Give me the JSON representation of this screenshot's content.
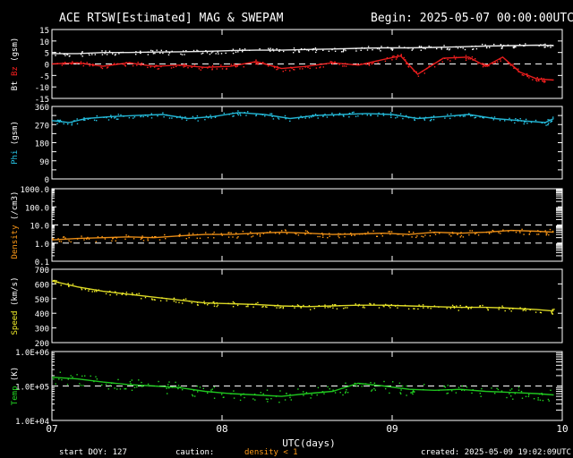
{
  "header": {
    "title": "ACE RTSW[Estimated] MAG & SWEPAM",
    "begin": "Begin: 2025-05-07 00:00:00UTC"
  },
  "footer": {
    "start_doy": "start DOY: 127",
    "caution": "caution:",
    "density_note": "density < 1",
    "created": "created: 2025-05-09 19:02:09UTC"
  },
  "chart_data": {
    "type": "scatter",
    "x_axis": {
      "label": "UTC(days)",
      "ticks": [
        "07",
        "08",
        "09",
        "10"
      ],
      "range_days": [
        0,
        3
      ]
    },
    "panels": [
      {
        "id": "bz",
        "ylabel_parts": [
          {
            "text": "Bt",
            "color": "#ffffff"
          },
          {
            "text": "Bz",
            "color": "#ff2020"
          },
          {
            "text": "(gsm)",
            "color": "#ffffff"
          }
        ],
        "ylim": [
          -15,
          15
        ],
        "ticks": [
          -15,
          -10,
          -5,
          0,
          5,
          10,
          15
        ],
        "tick_labels": [
          "-15",
          "-10",
          "-5",
          "0",
          "5",
          "10",
          "15"
        ],
        "dashed_at": [
          0
        ],
        "series": [
          {
            "name": "Bt",
            "color": "#ffffff",
            "x": [
              0.0,
              0.15,
              0.3,
              0.45,
              0.6,
              0.75,
              0.9,
              1.05,
              1.2,
              1.35,
              1.5,
              1.65,
              1.8,
              1.95,
              2.1,
              2.25,
              2.4,
              2.55,
              2.7,
              2.85,
              2.95
            ],
            "y": [
              4.5,
              4.5,
              5.0,
              5.0,
              5.2,
              5.3,
              5.5,
              5.8,
              6.0,
              6.0,
              6.3,
              6.5,
              6.8,
              7.0,
              7.0,
              7.2,
              7.5,
              7.8,
              8.0,
              8.2,
              8.0
            ]
          },
          {
            "name": "Bz",
            "color": "#ff2020",
            "x": [
              0.0,
              0.15,
              0.3,
              0.45,
              0.6,
              0.75,
              0.9,
              1.05,
              1.2,
              1.35,
              1.5,
              1.65,
              1.8,
              1.95,
              2.05,
              2.15,
              2.3,
              2.45,
              2.55,
              2.65,
              2.75,
              2.85,
              2.95
            ],
            "y": [
              0.0,
              0.5,
              -1.0,
              0.5,
              -1.0,
              -0.5,
              -1.5,
              -1.0,
              1.0,
              -2.0,
              -1.0,
              0.5,
              -0.5,
              2.0,
              3.5,
              -4.5,
              2.5,
              3.0,
              -1.0,
              3.0,
              -3.5,
              -6.5,
              -7.0
            ]
          }
        ]
      },
      {
        "id": "phi",
        "ylabel_parts": [
          {
            "text": "Phi",
            "color": "#27c6e8"
          },
          {
            "text": "(gsm)",
            "color": "#ffffff"
          }
        ],
        "ylim": [
          0,
          360
        ],
        "ticks": [
          0,
          45,
          90,
          135,
          180,
          225,
          270,
          315,
          360
        ],
        "tick_labels": [
          "0",
          "",
          "90",
          "",
          "180",
          "",
          "270",
          "",
          "360"
        ],
        "dashed_at": [],
        "series": [
          {
            "name": "Phi",
            "color": "#27c6e8",
            "x": [
              0.0,
              0.1,
              0.2,
              0.35,
              0.5,
              0.65,
              0.8,
              0.95,
              1.1,
              1.25,
              1.4,
              1.55,
              1.7,
              1.85,
              2.0,
              2.15,
              2.3,
              2.45,
              2.6,
              2.75,
              2.9,
              2.95
            ],
            "y": [
              290,
              280,
              300,
              310,
              315,
              320,
              300,
              310,
              330,
              320,
              300,
              315,
              320,
              325,
              320,
              300,
              310,
              320,
              300,
              290,
              280,
              300
            ]
          }
        ]
      },
      {
        "id": "density",
        "ylabel_parts": [
          {
            "text": "Density",
            "color": "#ff9a18"
          },
          {
            "text": "(/cm3)",
            "color": "#ffffff"
          }
        ],
        "scale": "log",
        "ylim": [
          0.1,
          1000
        ],
        "ticks": [
          0.1,
          1.0,
          10.0,
          100.0,
          1000.0
        ],
        "tick_labels": [
          "0.1",
          "1.0",
          "10.0",
          "100.0",
          "1000.0"
        ],
        "dashed_at": [
          1.0,
          10.0
        ],
        "series": [
          {
            "name": "Density",
            "color": "#ff9a18",
            "x": [
              0.0,
              0.15,
              0.3,
              0.45,
              0.6,
              0.75,
              0.9,
              1.05,
              1.2,
              1.35,
              1.5,
              1.65,
              1.8,
              1.95,
              2.1,
              2.25,
              2.4,
              2.55,
              2.7,
              2.85,
              2.95
            ],
            "y": [
              1.5,
              1.8,
              2.0,
              2.2,
              2.0,
              2.5,
              3.0,
              3.0,
              3.5,
              4.0,
              3.5,
              3.0,
              3.2,
              3.5,
              3.0,
              4.0,
              3.5,
              4.0,
              5.0,
              4.5,
              4.0
            ]
          }
        ]
      },
      {
        "id": "speed",
        "ylabel_parts": [
          {
            "text": "Speed",
            "color": "#f3ef2a"
          },
          {
            "text": "(km/s)",
            "color": "#ffffff"
          }
        ],
        "ylim": [
          200,
          700
        ],
        "ticks": [
          200,
          300,
          400,
          500,
          600,
          700
        ],
        "tick_labels": [
          "200",
          "300",
          "400",
          "500",
          "600",
          "700"
        ],
        "dashed_at": [],
        "series": [
          {
            "name": "Speed",
            "color": "#f3ef2a",
            "x": [
              0.0,
              0.15,
              0.3,
              0.45,
              0.6,
              0.75,
              0.9,
              1.05,
              1.2,
              1.35,
              1.5,
              1.65,
              1.8,
              1.95,
              2.1,
              2.25,
              2.4,
              2.55,
              2.7,
              2.85,
              2.95
            ],
            "y": [
              620,
              580,
              550,
              530,
              510,
              490,
              470,
              465,
              460,
              450,
              445,
              450,
              455,
              455,
              450,
              445,
              440,
              440,
              435,
              425,
              415
            ]
          }
        ]
      },
      {
        "id": "temp",
        "ylabel_parts": [
          {
            "text": "Temp",
            "color": "#22d822"
          },
          {
            "text": "(K)",
            "color": "#ffffff"
          }
        ],
        "scale": "log",
        "ylim": [
          10000,
          1000000
        ],
        "ticks": [
          10000,
          100000,
          1000000
        ],
        "tick_labels": [
          "1.0E+04",
          "1.0E+05",
          "1.0E+06"
        ],
        "dashed_at": [
          100000
        ],
        "series": [
          {
            "name": "Temp",
            "color": "#22d822",
            "x": [
              0.0,
              0.15,
              0.3,
              0.45,
              0.6,
              0.75,
              0.9,
              1.05,
              1.2,
              1.35,
              1.5,
              1.65,
              1.8,
              1.95,
              2.1,
              2.25,
              2.4,
              2.55,
              2.7,
              2.85,
              2.95
            ],
            "y": [
              180000,
              160000,
              130000,
              110000,
              100000,
              90000,
              70000,
              60000,
              55000,
              50000,
              60000,
              70000,
              120000,
              100000,
              80000,
              75000,
              80000,
              70000,
              65000,
              60000,
              55000
            ]
          }
        ]
      }
    ]
  }
}
